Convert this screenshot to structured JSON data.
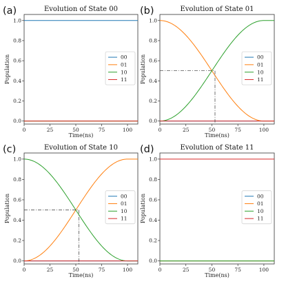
{
  "chart_data": [
    {
      "panel": "(a)",
      "type": "line",
      "title": "Evolution of State 00",
      "xlabel": "Time(ns)",
      "ylabel": "Population",
      "xlim": [
        0,
        110
      ],
      "ylim": [
        -0.03,
        1.06
      ],
      "xticks": [
        0,
        25,
        50,
        75,
        100
      ],
      "yticks": [
        "0.0",
        "0.2",
        "0.4",
        "0.6",
        "0.8",
        "1.0"
      ],
      "legend": "right",
      "gate_time": 100,
      "series": [
        {
          "name": "00",
          "color": "#1f77b4",
          "x": [
            0,
            110
          ],
          "y": [
            1,
            1
          ]
        },
        {
          "name": "01",
          "color": "#ff7f0e",
          "x": [
            0,
            110
          ],
          "y": [
            0,
            0
          ]
        },
        {
          "name": "10",
          "color": "#2ca02c",
          "x": [
            0,
            110
          ],
          "y": [
            0,
            0
          ]
        },
        {
          "name": "11",
          "color": "#d62728",
          "x": [
            0,
            110
          ],
          "y": [
            0,
            0
          ]
        }
      ]
    },
    {
      "panel": "(b)",
      "type": "line",
      "title": "Evolution of State 01",
      "xlabel": "Time(ns)",
      "ylabel": "Population",
      "xlim": [
        0,
        110
      ],
      "ylim": [
        -0.03,
        1.06
      ],
      "xticks": [
        0,
        25,
        50,
        75,
        100
      ],
      "yticks": [
        "0.0",
        "0.2",
        "0.4",
        "0.6",
        "0.8",
        "1.0"
      ],
      "legend": "right",
      "gate_time": 100,
      "crossing": {
        "x": 53,
        "y": 0.5
      },
      "series": [
        {
          "name": "00",
          "color": "#1f77b4",
          "x": [
            0,
            110
          ],
          "y": [
            0,
            0
          ]
        },
        {
          "name": "01",
          "color": "#ff7f0e",
          "shape": "cos2",
          "x": [
            0,
            100,
            110
          ],
          "y": [
            1,
            0,
            0
          ]
        },
        {
          "name": "10",
          "color": "#2ca02c",
          "shape": "sin2",
          "x": [
            0,
            100,
            110
          ],
          "y": [
            0,
            1,
            1
          ]
        },
        {
          "name": "11",
          "color": "#d62728",
          "x": [
            0,
            110
          ],
          "y": [
            0,
            0
          ]
        }
      ]
    },
    {
      "panel": "(c)",
      "type": "line",
      "title": "Evolution of State 10",
      "xlabel": "Time(ns)",
      "ylabel": "Population",
      "xlim": [
        0,
        110
      ],
      "ylim": [
        -0.03,
        1.06
      ],
      "xticks": [
        0,
        25,
        50,
        75,
        100
      ],
      "yticks": [
        "0.0",
        "0.2",
        "0.4",
        "0.6",
        "0.8",
        "1.0"
      ],
      "legend": "right",
      "gate_time": 100,
      "crossing": {
        "x": 53,
        "y": 0.5
      },
      "series": [
        {
          "name": "00",
          "color": "#1f77b4",
          "x": [
            0,
            110
          ],
          "y": [
            0,
            0
          ]
        },
        {
          "name": "01",
          "color": "#ff7f0e",
          "shape": "sin2",
          "x": [
            0,
            100,
            110
          ],
          "y": [
            0,
            1,
            1
          ]
        },
        {
          "name": "10",
          "color": "#2ca02c",
          "shape": "cos2",
          "x": [
            0,
            100,
            110
          ],
          "y": [
            1,
            0,
            0
          ]
        },
        {
          "name": "11",
          "color": "#d62728",
          "x": [
            0,
            110
          ],
          "y": [
            0,
            0
          ]
        }
      ]
    },
    {
      "panel": "(d)",
      "type": "line",
      "title": "Evolution of State 11",
      "xlabel": "Time(ns)",
      "ylabel": "Population",
      "xlim": [
        0,
        110
      ],
      "ylim": [
        -0.03,
        1.06
      ],
      "xticks": [
        0,
        25,
        50,
        75,
        100
      ],
      "yticks": [
        "0.0",
        "0.2",
        "0.4",
        "0.6",
        "0.8",
        "1.0"
      ],
      "legend": "right",
      "gate_time": 100,
      "series": [
        {
          "name": "00",
          "color": "#1f77b4",
          "x": [
            0,
            110
          ],
          "y": [
            0,
            0
          ]
        },
        {
          "name": "01",
          "color": "#ff7f0e",
          "x": [
            0,
            110
          ],
          "y": [
            0,
            0
          ]
        },
        {
          "name": "10",
          "color": "#2ca02c",
          "x": [
            0,
            110
          ],
          "y": [
            0,
            0
          ]
        },
        {
          "name": "11",
          "color": "#d62728",
          "x": [
            0,
            110
          ],
          "y": [
            1,
            1
          ]
        }
      ]
    }
  ]
}
